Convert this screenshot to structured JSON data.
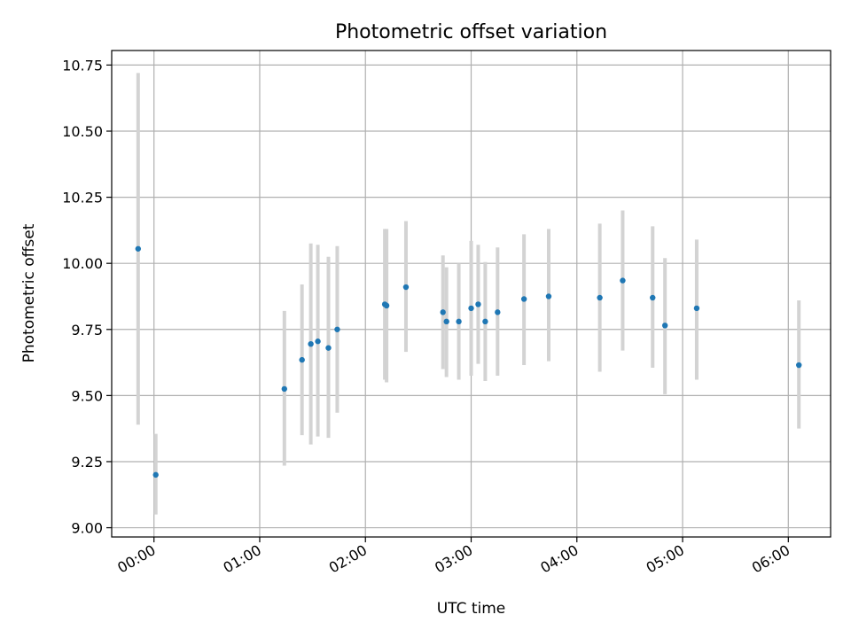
{
  "chart_data": {
    "type": "scatter",
    "title": "Photometric offset variation",
    "xlabel": "UTC time",
    "ylabel": "Photometric offset",
    "xlim": [
      "23:36",
      "06:24"
    ],
    "ylim": [
      8.965,
      10.805
    ],
    "grid": true,
    "x_ticks": [
      "00:00",
      "01:00",
      "02:00",
      "03:00",
      "04:00",
      "05:00",
      "06:00"
    ],
    "y_ticks": [
      "9.00",
      "9.25",
      "9.50",
      "9.75",
      "10.00",
      "10.25",
      "10.50",
      "10.75"
    ],
    "colors": {
      "marker": "#1f77b4",
      "errorbar": "#d3d3d3",
      "grid": "#b0b0b0"
    },
    "points": [
      {
        "x": "23:51",
        "y": 10.055,
        "lo": 9.39,
        "hi": 10.72
      },
      {
        "x": "00:01",
        "y": 9.2,
        "lo": 9.05,
        "hi": 9.355
      },
      {
        "x": "01:14",
        "y": 9.525,
        "lo": 9.235,
        "hi": 9.82
      },
      {
        "x": "01:24",
        "y": 9.635,
        "lo": 9.35,
        "hi": 9.92
      },
      {
        "x": "01:29",
        "y": 9.695,
        "lo": 9.315,
        "hi": 10.075
      },
      {
        "x": "01:33",
        "y": 9.705,
        "lo": 9.345,
        "hi": 10.07
      },
      {
        "x": "01:39",
        "y": 9.68,
        "lo": 9.34,
        "hi": 10.025
      },
      {
        "x": "01:44",
        "y": 9.75,
        "lo": 9.435,
        "hi": 10.065
      },
      {
        "x": "02:11",
        "y": 9.845,
        "lo": 9.56,
        "hi": 10.13
      },
      {
        "x": "02:12",
        "y": 9.84,
        "lo": 9.55,
        "hi": 10.13
      },
      {
        "x": "02:23",
        "y": 9.91,
        "lo": 9.665,
        "hi": 10.16
      },
      {
        "x": "02:44",
        "y": 9.815,
        "lo": 9.6,
        "hi": 10.03
      },
      {
        "x": "02:46",
        "y": 9.78,
        "lo": 9.57,
        "hi": 9.985
      },
      {
        "x": "02:53",
        "y": 9.78,
        "lo": 9.56,
        "hi": 10.0
      },
      {
        "x": "03:00",
        "y": 9.83,
        "lo": 9.575,
        "hi": 10.085
      },
      {
        "x": "03:04",
        "y": 9.845,
        "lo": 9.62,
        "hi": 10.07
      },
      {
        "x": "03:08",
        "y": 9.78,
        "lo": 9.555,
        "hi": 10.005
      },
      {
        "x": "03:15",
        "y": 9.815,
        "lo": 9.575,
        "hi": 10.06
      },
      {
        "x": "03:30",
        "y": 9.865,
        "lo": 9.615,
        "hi": 10.11
      },
      {
        "x": "03:44",
        "y": 9.875,
        "lo": 9.63,
        "hi": 10.13
      },
      {
        "x": "04:13",
        "y": 9.87,
        "lo": 9.59,
        "hi": 10.15
      },
      {
        "x": "04:26",
        "y": 9.935,
        "lo": 9.67,
        "hi": 10.2
      },
      {
        "x": "04:43",
        "y": 9.87,
        "lo": 9.605,
        "hi": 10.14
      },
      {
        "x": "04:50",
        "y": 9.765,
        "lo": 9.505,
        "hi": 10.02
      },
      {
        "x": "05:08",
        "y": 9.83,
        "lo": 9.56,
        "hi": 10.09
      },
      {
        "x": "06:06",
        "y": 9.615,
        "lo": 9.375,
        "hi": 9.86
      }
    ]
  }
}
